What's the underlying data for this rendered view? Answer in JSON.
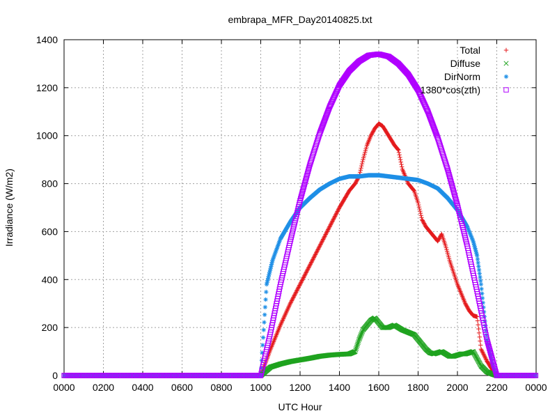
{
  "chart_data": {
    "type": "scatter",
    "title": "embrapa_MFR_Day20140825.txt",
    "xlabel": "UTC Hour",
    "ylabel": "Irradiance (W/m2)",
    "xlim": [
      0,
      2400
    ],
    "ylim": [
      0,
      1400
    ],
    "x_ticks": [
      "0000",
      "0200",
      "0400",
      "0600",
      "0800",
      "1000",
      "1200",
      "1400",
      "1600",
      "1800",
      "2000",
      "2200",
      "0000"
    ],
    "y_ticks": [
      "0",
      "200",
      "400",
      "600",
      "800",
      "1000",
      "1200",
      "1400"
    ],
    "grid": true,
    "legend_position": "top-right",
    "series": [
      {
        "name": "Total",
        "marker": "+",
        "color": "#e41a1c",
        "x": [
          1000,
          1050,
          1100,
          1150,
          1200,
          1250,
          1300,
          1350,
          1400,
          1450,
          1480,
          1500,
          1520,
          1540,
          1560,
          1580,
          1600,
          1620,
          1650,
          1680,
          1700,
          1720,
          1750,
          1780,
          1800,
          1820,
          1840,
          1860,
          1880,
          1900,
          1920,
          1940,
          1960,
          1980,
          2000,
          2020,
          2040,
          2060,
          2080,
          2100,
          2120,
          2150,
          2180,
          2200
        ],
        "y": [
          0,
          110,
          210,
          300,
          380,
          460,
          540,
          620,
          700,
          770,
          800,
          830,
          900,
          960,
          1000,
          1030,
          1050,
          1040,
          1000,
          960,
          940,
          860,
          800,
          770,
          720,
          650,
          620,
          600,
          580,
          560,
          590,
          540,
          480,
          430,
          380,
          340,
          300,
          270,
          250,
          245,
          110,
          60,
          20,
          0
        ]
      },
      {
        "name": "Diffuse",
        "marker": "x",
        "color": "#1fa31f",
        "x": [
          1000,
          1050,
          1100,
          1150,
          1200,
          1250,
          1300,
          1350,
          1400,
          1450,
          1480,
          1500,
          1520,
          1540,
          1560,
          1580,
          1600,
          1620,
          1650,
          1680,
          1700,
          1720,
          1750,
          1780,
          1800,
          1820,
          1840,
          1860,
          1880,
          1900,
          1920,
          1940,
          1960,
          1980,
          2000,
          2020,
          2040,
          2060,
          2080,
          2100,
          2120,
          2150,
          2180,
          2200
        ],
        "y": [
          0,
          35,
          48,
          58,
          65,
          72,
          80,
          85,
          88,
          90,
          100,
          150,
          190,
          210,
          230,
          240,
          220,
          200,
          200,
          210,
          200,
          190,
          180,
          170,
          150,
          130,
          110,
          95,
          90,
          95,
          100,
          90,
          80,
          80,
          85,
          90,
          90,
          95,
          100,
          70,
          40,
          15,
          5,
          0
        ]
      },
      {
        "name": "DirNorm",
        "marker": "*",
        "color": "#1e8fe6",
        "x": [
          1000,
          1030,
          1060,
          1100,
          1150,
          1200,
          1250,
          1300,
          1350,
          1400,
          1450,
          1500,
          1550,
          1600,
          1650,
          1700,
          1750,
          1800,
          1850,
          1900,
          1950,
          2000,
          2050,
          2080,
          2100,
          2120,
          2150,
          2180,
          2200
        ],
        "y": [
          0,
          380,
          480,
          570,
          640,
          700,
          740,
          775,
          800,
          820,
          830,
          830,
          835,
          835,
          830,
          825,
          820,
          815,
          800,
          780,
          740,
          690,
          620,
          560,
          500,
          380,
          150,
          40,
          0
        ]
      },
      {
        "name": "1380*cos(zth)",
        "marker": "square",
        "color": "#b000ff",
        "x": [
          1000,
          1050,
          1100,
          1150,
          1200,
          1250,
          1300,
          1350,
          1400,
          1450,
          1500,
          1550,
          1600,
          1650,
          1700,
          1750,
          1800,
          1850,
          1900,
          1950,
          2000,
          2050,
          2100,
          2150,
          2200
        ],
        "y": [
          0,
          180,
          380,
          560,
          730,
          880,
          1010,
          1120,
          1210,
          1270,
          1310,
          1335,
          1340,
          1330,
          1300,
          1255,
          1190,
          1100,
          990,
          860,
          710,
          540,
          350,
          150,
          0
        ]
      }
    ]
  }
}
